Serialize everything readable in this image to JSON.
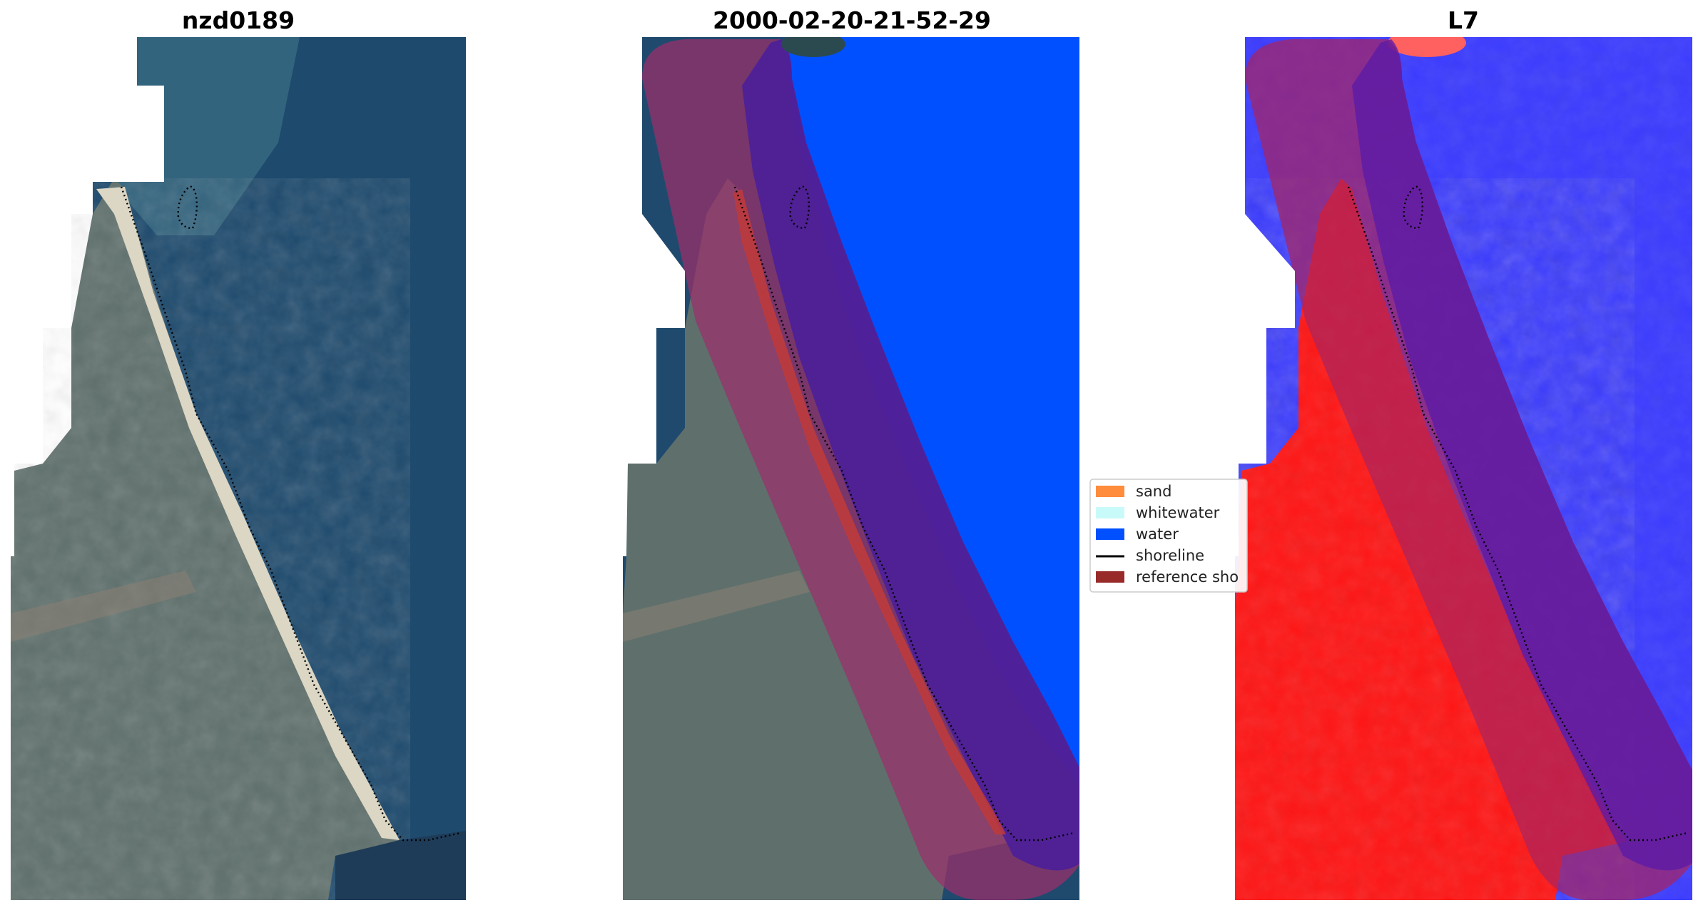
{
  "figure": {
    "panels": [
      {
        "title": "nzd0189",
        "kind": "rgb-image"
      },
      {
        "title": "2000-02-20-21-52-29",
        "kind": "classified-overlay"
      },
      {
        "title": "L7",
        "kind": "index-overlay"
      }
    ],
    "legend": {
      "items": [
        {
          "label": "sand",
          "color": "#ff8c3c",
          "marker": "patch"
        },
        {
          "label": "whitewater",
          "color": "#c8fafa",
          "marker": "patch"
        },
        {
          "label": "water",
          "color": "#0050ff",
          "marker": "patch"
        },
        {
          "label": "shoreline",
          "color": "#000000",
          "marker": "line"
        },
        {
          "label": "reference sho",
          "color": "#992a2a",
          "marker": "patch"
        }
      ]
    },
    "colors": {
      "water_deep": "#1f4a6e",
      "land": "#5e6f6c",
      "beach": "#d8d2bf",
      "classified_water": "#0050ff",
      "reference_buffer": "#9b2f6b",
      "index_red": "#ff1010",
      "index_blue": "#3030ff",
      "shoreline": "#000000"
    }
  }
}
